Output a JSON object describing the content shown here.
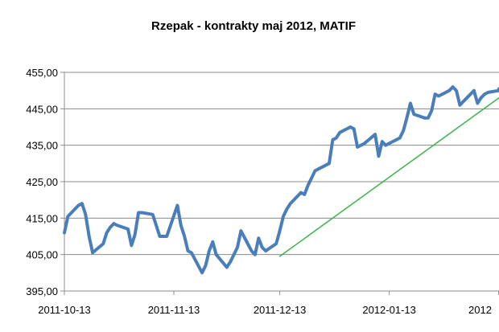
{
  "chart_data": {
    "type": "line",
    "title": "Rzepak - kontrakty maj 2012, MATIF",
    "xlabel": "",
    "ylabel": "",
    "ylim": [
      395,
      455
    ],
    "yticks": [
      "395,00",
      "405,00",
      "415,00",
      "425,00",
      "435,00",
      "445,00",
      "455,00"
    ],
    "ytick_values": [
      395,
      405,
      415,
      425,
      435,
      445,
      455
    ],
    "xticks": [
      "2011-10-13",
      "2011-11-13",
      "2011-12-13",
      "2012-01-13",
      "2012"
    ],
    "xtick_dates": [
      "2011-10-13",
      "2011-11-13",
      "2011-12-13",
      "2012-01-13",
      "2012-02-13"
    ],
    "grid": true,
    "legend": "none",
    "series": [
      {
        "color": "#4a7ebb",
        "x": [
          "2011-10-13",
          "2011-10-14",
          "2011-10-17",
          "2011-10-18",
          "2011-10-19",
          "2011-10-20",
          "2011-10-21",
          "2011-10-24",
          "2011-10-25",
          "2011-10-26",
          "2011-10-27",
          "2011-10-28",
          "2011-10-31",
          "2011-11-01",
          "2011-11-02",
          "2011-11-03",
          "2011-11-04",
          "2011-11-07",
          "2011-11-08",
          "2011-11-09",
          "2011-11-10",
          "2011-11-11",
          "2011-11-14",
          "2011-11-15",
          "2011-11-16",
          "2011-11-17",
          "2011-11-18",
          "2011-11-21",
          "2011-11-22",
          "2011-11-23",
          "2011-11-24",
          "2011-11-25",
          "2011-11-28",
          "2011-11-29",
          "2011-11-30",
          "2011-12-01",
          "2011-12-02",
          "2011-12-05",
          "2011-12-06",
          "2011-12-07",
          "2011-12-08",
          "2011-12-09",
          "2011-12-12",
          "2011-12-13",
          "2011-12-14",
          "2011-12-15",
          "2011-12-16",
          "2011-12-19",
          "2011-12-20",
          "2011-12-21",
          "2011-12-22",
          "2011-12-23",
          "2011-12-27",
          "2011-12-28",
          "2011-12-29",
          "2011-12-30",
          "2012-01-02",
          "2012-01-03",
          "2012-01-04",
          "2012-01-05",
          "2012-01-06",
          "2012-01-09",
          "2012-01-10",
          "2012-01-11",
          "2012-01-12",
          "2012-01-13",
          "2012-01-16",
          "2012-01-17",
          "2012-01-18",
          "2012-01-19",
          "2012-01-20",
          "2012-01-23",
          "2012-01-24",
          "2012-01-25",
          "2012-01-26",
          "2012-01-27",
          "2012-01-30",
          "2012-01-31",
          "2012-02-01",
          "2012-02-02",
          "2012-02-03",
          "2012-02-06",
          "2012-02-07",
          "2012-02-08",
          "2012-02-09",
          "2012-02-10",
          "2012-02-13",
          "2012-02-14"
        ],
        "values": [
          411.0,
          415.5,
          418.5,
          419.0,
          416.0,
          410.0,
          405.5,
          408.0,
          411.0,
          412.5,
          413.5,
          413.0,
          412.0,
          407.5,
          410.5,
          416.5,
          416.5,
          416.0,
          413.0,
          410.0,
          410.0,
          410.0,
          418.5,
          413.0,
          410.0,
          406.0,
          405.5,
          400.0,
          402.0,
          406.0,
          408.5,
          405.0,
          401.5,
          403.0,
          405.0,
          407.0,
          411.5,
          406.0,
          405.0,
          409.5,
          407.0,
          406.0,
          408.0,
          411.5,
          415.5,
          417.5,
          419.0,
          422.0,
          421.5,
          424.0,
          426.0,
          428.0,
          430.0,
          436.5,
          437.0,
          438.5,
          440.0,
          439.5,
          434.5,
          435.0,
          435.5,
          438.0,
          432.0,
          436.0,
          435.0,
          435.5,
          437.0,
          439.0,
          442.5,
          446.5,
          443.5,
          442.5,
          442.5,
          444.5,
          449.0,
          448.5,
          450.0,
          451.0,
          450.0,
          446.0,
          447.0,
          450.0,
          446.5,
          448.0,
          449.0,
          449.5,
          450.0,
          450.5
        ]
      },
      {
        "color": "#3cb44b",
        "x": [
          "2011-12-13",
          "2012-02-14"
        ],
        "values": [
          404.5,
          448.0
        ]
      }
    ]
  }
}
